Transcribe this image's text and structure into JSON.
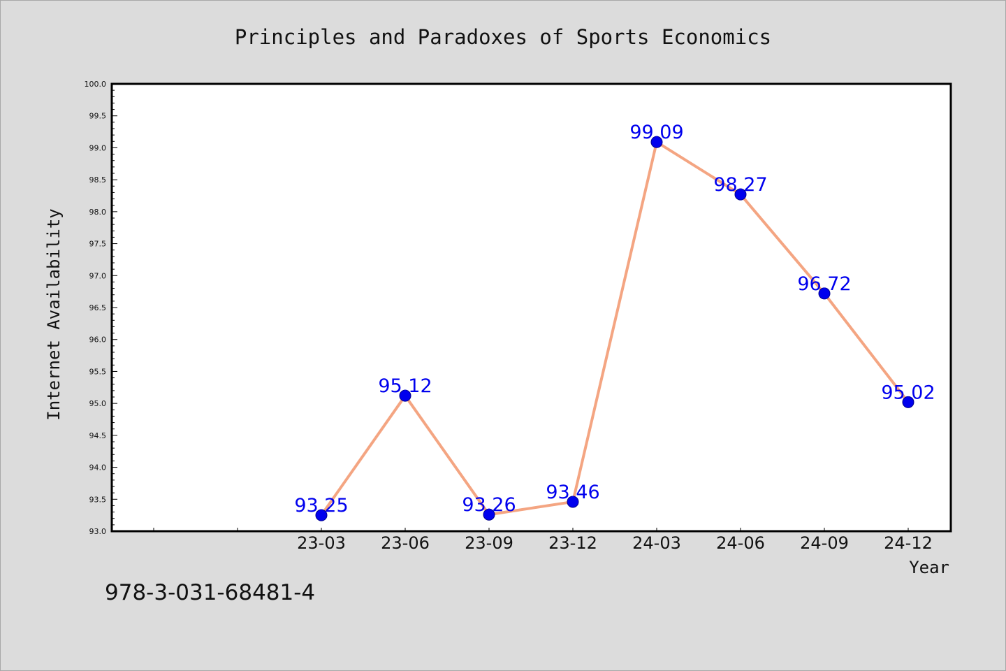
{
  "chart_data": {
    "type": "line",
    "title": "Principles and Paradoxes of Sports Economics",
    "xlabel": "Year",
    "ylabel": "Internet Availability",
    "categories": [
      "23-03",
      "23-06",
      "23-09",
      "23-12",
      "24-03",
      "24-06",
      "24-09",
      "24-12"
    ],
    "category_slots": [
      "",
      "",
      "23-03",
      "23-06",
      "23-09",
      "23-12",
      "24-03",
      "24-06",
      "24-09",
      "24-12"
    ],
    "series": [
      {
        "values": [
          93.25,
          95.12,
          93.26,
          93.46,
          99.09,
          98.27,
          96.72,
          95.02
        ],
        "data_labels": [
          "93.25",
          "95.12",
          "93.26",
          "93.46",
          "99.09",
          "98.27",
          "96.72",
          "95.02"
        ],
        "line_color": "#f4a582",
        "marker_color": "#0000ee",
        "label_color": "#0000ee"
      }
    ],
    "ylim": [
      93.0,
      100.0
    ],
    "yticks": [
      "93.0",
      "93.5",
      "94.0",
      "94.5",
      "95.0",
      "95.5",
      "96.0",
      "96.5",
      "97.0",
      "97.5",
      "98.0",
      "98.5",
      "99.0",
      "99.5",
      "100.0"
    ],
    "grid": false,
    "legend": "none",
    "background": "#dcdcdc",
    "plot_background": "#ffffff"
  },
  "footer": {
    "isbn": "978-3-031-68481-4"
  }
}
